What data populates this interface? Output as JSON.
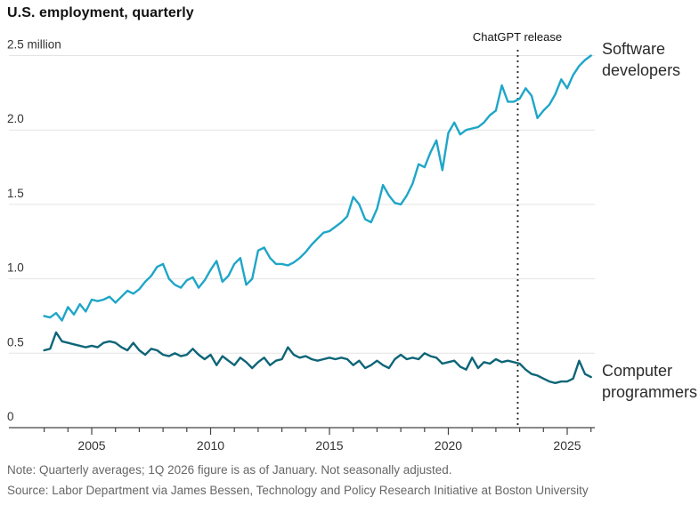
{
  "title": "U.S. employment, quarterly",
  "annotation": {
    "chatgpt_label": "ChatGPT release"
  },
  "series_labels": {
    "software": "Software developers",
    "programmers": "Computer programmers"
  },
  "note": "Note: Quarterly averages; 1Q 2026 figure is as of January. Not seasonally adjusted.",
  "source": "Source: Labor Department via James Bessen, Technology and Policy Research Initiative at Boston University",
  "colors": {
    "software_line": "#1fa6c8",
    "programmers_line": "#0d6577",
    "grid": "#e4e4e4",
    "axis": "#444444",
    "tick_text": "#333333",
    "annotation_line": "#222222"
  },
  "chart_data": {
    "type": "line",
    "title": "U.S. employment, quarterly",
    "xlabel": "",
    "ylabel": "million",
    "grid": "horizontal",
    "x_start": 2003.0,
    "x_step": 0.25,
    "x_end": 2026.0,
    "xlim": [
      2002.6,
      2026.3
    ],
    "ylim": [
      0,
      2.5
    ],
    "x_ticks_labeled": [
      2005,
      2010,
      2015,
      2020,
      2025
    ],
    "x_minor_ticks_every_year_from": 2003,
    "x_minor_ticks_every_year_to": 2026,
    "y_ticks": [
      {
        "value": 0,
        "label": "0"
      },
      {
        "value": 0.5,
        "label": "0.5"
      },
      {
        "value": 1.0,
        "label": "1.0"
      },
      {
        "value": 1.5,
        "label": "1.5"
      },
      {
        "value": 2.0,
        "label": "2.0"
      },
      {
        "value": 2.5,
        "label": "2.5 million"
      }
    ],
    "annotations": [
      {
        "label": "ChatGPT release",
        "x": 2022.92,
        "style": "dotted-vertical-line"
      }
    ],
    "legend_position": "right-of-line-ends",
    "series": [
      {
        "name": "Software developers",
        "slug": "software-developers",
        "color": "#1fa6c8",
        "values": [
          0.75,
          0.74,
          0.77,
          0.72,
          0.81,
          0.76,
          0.83,
          0.78,
          0.86,
          0.85,
          0.86,
          0.88,
          0.84,
          0.88,
          0.92,
          0.9,
          0.93,
          0.98,
          1.02,
          1.08,
          1.1,
          1.0,
          0.96,
          0.94,
          0.99,
          1.01,
          0.94,
          0.99,
          1.06,
          1.12,
          0.98,
          1.02,
          1.1,
          1.14,
          0.96,
          1.0,
          1.19,
          1.21,
          1.14,
          1.1,
          1.1,
          1.09,
          1.11,
          1.14,
          1.18,
          1.23,
          1.27,
          1.31,
          1.32,
          1.35,
          1.38,
          1.42,
          1.55,
          1.5,
          1.4,
          1.38,
          1.47,
          1.63,
          1.56,
          1.51,
          1.5,
          1.56,
          1.64,
          1.77,
          1.75,
          1.85,
          1.93,
          1.73,
          1.98,
          2.05,
          1.97,
          2.0,
          2.01,
          2.02,
          2.05,
          2.1,
          2.13,
          2.3,
          2.19,
          2.19,
          2.21,
          2.28,
          2.23,
          2.08,
          2.13,
          2.17,
          2.24,
          2.34,
          2.28,
          2.37,
          2.43,
          2.47,
          2.5
        ]
      },
      {
        "name": "Computer programmers",
        "slug": "computer-programmers",
        "color": "#0d6577",
        "values": [
          0.52,
          0.53,
          0.64,
          0.58,
          0.57,
          0.56,
          0.55,
          0.54,
          0.55,
          0.54,
          0.57,
          0.58,
          0.57,
          0.54,
          0.52,
          0.57,
          0.52,
          0.49,
          0.53,
          0.52,
          0.49,
          0.48,
          0.5,
          0.48,
          0.49,
          0.53,
          0.49,
          0.46,
          0.49,
          0.42,
          0.48,
          0.45,
          0.42,
          0.47,
          0.44,
          0.4,
          0.44,
          0.47,
          0.42,
          0.45,
          0.46,
          0.54,
          0.49,
          0.47,
          0.48,
          0.46,
          0.45,
          0.46,
          0.47,
          0.46,
          0.47,
          0.46,
          0.42,
          0.45,
          0.4,
          0.42,
          0.45,
          0.42,
          0.4,
          0.46,
          0.49,
          0.46,
          0.47,
          0.46,
          0.5,
          0.48,
          0.47,
          0.43,
          0.44,
          0.45,
          0.41,
          0.39,
          0.47,
          0.4,
          0.44,
          0.43,
          0.46,
          0.44,
          0.45,
          0.44,
          0.43,
          0.39,
          0.36,
          0.35,
          0.33,
          0.31,
          0.3,
          0.31,
          0.31,
          0.33,
          0.45,
          0.36,
          0.34
        ]
      }
    ]
  }
}
